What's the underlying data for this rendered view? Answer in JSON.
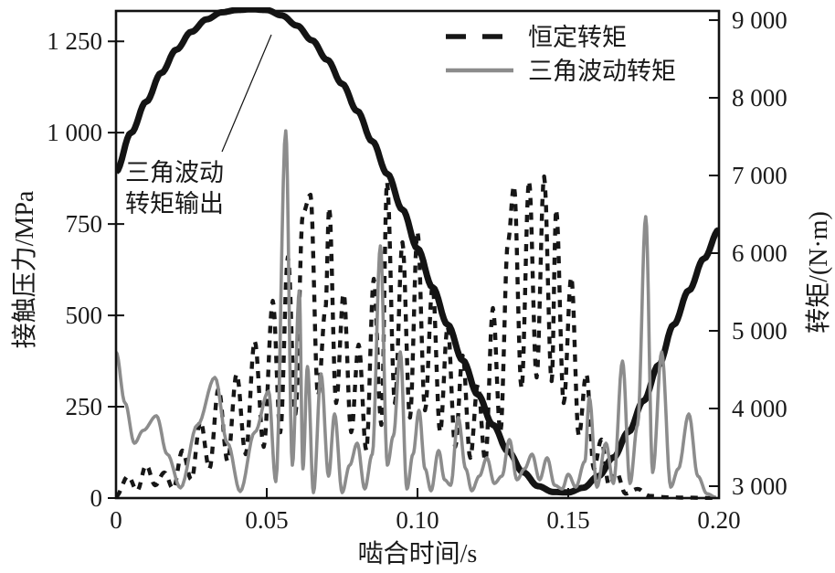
{
  "chart_data": {
    "type": "line",
    "title": "",
    "xlabel": "啮合时间/s",
    "ylabel_left": "接触压力/MPa",
    "ylabel_right": "转矩/(N·m)",
    "xlim": [
      0,
      0.2
    ],
    "ylim_left": [
      0,
      1333
    ],
    "ylim_right": [
      2847,
      9118
    ],
    "grid": false,
    "legend_position": "top-right-inside",
    "x_ticks": [
      {
        "value": 0,
        "label": "0"
      },
      {
        "value": 0.05,
        "label": "0.05"
      },
      {
        "value": 0.1,
        "label": "0.10"
      },
      {
        "value": 0.15,
        "label": "0.15"
      },
      {
        "value": 0.2,
        "label": "0.20"
      }
    ],
    "y_ticks_left": [
      {
        "value": 0,
        "label": "0"
      },
      {
        "value": 250,
        "label": "250"
      },
      {
        "value": 500,
        "label": "500"
      },
      {
        "value": 750,
        "label": "750"
      },
      {
        "value": 1000,
        "label": "1 000"
      },
      {
        "value": 1250,
        "label": "1 250"
      }
    ],
    "y_ticks_right": [
      {
        "value": 3000,
        "label": "3 000"
      },
      {
        "value": 4000,
        "label": "4 000"
      },
      {
        "value": 5000,
        "label": "5 000"
      },
      {
        "value": 6000,
        "label": "6 000"
      },
      {
        "value": 7000,
        "label": "7 000"
      },
      {
        "value": 8000,
        "label": "8 000"
      },
      {
        "value": 9000,
        "label": "9 000"
      }
    ],
    "annotation": {
      "lines": [
        "三角波动",
        "转矩输出"
      ],
      "points_to_series": "三角波动转矩输出"
    },
    "series": [
      {
        "name": "恒定转矩",
        "axis": "left",
        "unit": "MPa",
        "line": "dashed",
        "color": "#161616",
        "width": 4.4,
        "in_legend": true,
        "points": [
          [
            0,
            5
          ],
          [
            0.004,
            60
          ],
          [
            0.007,
            20
          ],
          [
            0.01,
            90
          ],
          [
            0.013,
            35
          ],
          [
            0.016,
            70
          ],
          [
            0.019,
            25
          ],
          [
            0.022,
            130
          ],
          [
            0.025,
            50
          ],
          [
            0.028,
            210
          ],
          [
            0.031,
            80
          ],
          [
            0.034,
            300
          ],
          [
            0.037,
            100
          ],
          [
            0.04,
            340
          ],
          [
            0.043,
            120
          ],
          [
            0.046,
            430
          ],
          [
            0.049,
            140
          ],
          [
            0.052,
            540
          ],
          [
            0.0545,
            180
          ],
          [
            0.057,
            660
          ],
          [
            0.0595,
            230
          ],
          [
            0.062,
            780
          ],
          [
            0.0645,
            830
          ],
          [
            0.067,
            280
          ],
          [
            0.0695,
            520
          ],
          [
            0.0707,
            795
          ],
          [
            0.073,
            260
          ],
          [
            0.0755,
            560
          ],
          [
            0.078,
            180
          ],
          [
            0.0805,
            420
          ],
          [
            0.083,
            130
          ],
          [
            0.0855,
            600
          ],
          [
            0.088,
            200
          ],
          [
            0.0899,
            865
          ],
          [
            0.0925,
            260
          ],
          [
            0.095,
            700
          ],
          [
            0.0975,
            220
          ],
          [
            0.1,
            730
          ],
          [
            0.1025,
            240
          ],
          [
            0.105,
            580
          ],
          [
            0.1075,
            180
          ],
          [
            0.11,
            470
          ],
          [
            0.1125,
            140
          ],
          [
            0.115,
            390
          ],
          [
            0.1175,
            110
          ],
          [
            0.12,
            310
          ],
          [
            0.1225,
            100
          ],
          [
            0.125,
            520
          ],
          [
            0.1275,
            180
          ],
          [
            0.13,
            700
          ],
          [
            0.132,
            855
          ],
          [
            0.1345,
            300
          ],
          [
            0.137,
            868
          ],
          [
            0.1395,
            330
          ],
          [
            0.142,
            880
          ],
          [
            0.1445,
            320
          ],
          [
            0.146,
            790
          ],
          [
            0.1485,
            260
          ],
          [
            0.151,
            605
          ],
          [
            0.1535,
            170
          ],
          [
            0.156,
            340
          ],
          [
            0.1585,
            80
          ],
          [
            0.161,
            160
          ],
          [
            0.1635,
            35
          ],
          [
            0.166,
            70
          ],
          [
            0.169,
            12
          ],
          [
            0.173,
            25
          ],
          [
            0.177,
            6
          ],
          [
            0.183,
            2
          ],
          [
            0.19,
            1
          ],
          [
            0.2,
            0
          ]
        ]
      },
      {
        "name": "三角波动转矩",
        "axis": "left",
        "unit": "MPa",
        "line": "solid",
        "color": "#8c8c8c",
        "width": 3.6,
        "in_legend": true,
        "points": [
          [
            0,
            400
          ],
          [
            0.003,
            260
          ],
          [
            0.0061,
            150
          ],
          [
            0.009,
            185
          ],
          [
            0.0134,
            225
          ],
          [
            0.017,
            120
          ],
          [
            0.0214,
            28
          ],
          [
            0.027,
            200
          ],
          [
            0.0328,
            330
          ],
          [
            0.037,
            150
          ],
          [
            0.0412,
            18
          ],
          [
            0.046,
            180
          ],
          [
            0.0506,
            292
          ],
          [
            0.053,
            45
          ],
          [
            0.0563,
            1005
          ],
          [
            0.0585,
            90
          ],
          [
            0.0608,
            567
          ],
          [
            0.062,
            80
          ],
          [
            0.0635,
            360
          ],
          [
            0.0655,
            15
          ],
          [
            0.068,
            340
          ],
          [
            0.0705,
            60
          ],
          [
            0.0725,
            230
          ],
          [
            0.075,
            15
          ],
          [
            0.0775,
            90
          ],
          [
            0.08,
            150
          ],
          [
            0.0825,
            25
          ],
          [
            0.085,
            120
          ],
          [
            0.0877,
            690
          ],
          [
            0.09,
            90
          ],
          [
            0.092,
            170
          ],
          [
            0.0943,
            400
          ],
          [
            0.0965,
            25
          ],
          [
            0.0985,
            120
          ],
          [
            0.1005,
            240
          ],
          [
            0.1025,
            80
          ],
          [
            0.1045,
            20
          ],
          [
            0.107,
            130
          ],
          [
            0.109,
            50
          ],
          [
            0.111,
            35
          ],
          [
            0.1135,
            220
          ],
          [
            0.116,
            80
          ],
          [
            0.118,
            20
          ],
          [
            0.1205,
            60
          ],
          [
            0.123,
            110
          ],
          [
            0.1255,
            40
          ],
          [
            0.128,
            60
          ],
          [
            0.1305,
            160
          ],
          [
            0.133,
            50
          ],
          [
            0.1355,
            80
          ],
          [
            0.138,
            120
          ],
          [
            0.1405,
            50
          ],
          [
            0.143,
            110
          ],
          [
            0.1455,
            35
          ],
          [
            0.148,
            25
          ],
          [
            0.15,
            65
          ],
          [
            0.1525,
            30
          ],
          [
            0.1555,
            100
          ],
          [
            0.157,
            275
          ],
          [
            0.1595,
            30
          ],
          [
            0.1625,
            150
          ],
          [
            0.165,
            40
          ],
          [
            0.168,
            375
          ],
          [
            0.1705,
            40
          ],
          [
            0.173,
            200
          ],
          [
            0.1757,
            770
          ],
          [
            0.178,
            70
          ],
          [
            0.181,
            400
          ],
          [
            0.184,
            30
          ],
          [
            0.1865,
            80
          ],
          [
            0.19,
            230
          ],
          [
            0.193,
            60
          ],
          [
            0.196,
            12
          ],
          [
            0.199,
            2
          ]
        ]
      },
      {
        "name": "三角波动转矩输出",
        "axis": "right",
        "unit": "N·m",
        "line": "solid",
        "color": "#141414",
        "width": 7,
        "in_legend": false,
        "points": [
          [
            0,
            7050
          ],
          [
            0.005,
            7550
          ],
          [
            0.01,
            7950
          ],
          [
            0.015,
            8320
          ],
          [
            0.02,
            8620
          ],
          [
            0.025,
            8850
          ],
          [
            0.03,
            9010
          ],
          [
            0.035,
            9100
          ],
          [
            0.04,
            9130
          ],
          [
            0.045,
            9140
          ],
          [
            0.05,
            9130
          ],
          [
            0.055,
            9060
          ],
          [
            0.06,
            8930
          ],
          [
            0.065,
            8740
          ],
          [
            0.07,
            8490
          ],
          [
            0.075,
            8180
          ],
          [
            0.08,
            7830
          ],
          [
            0.085,
            7440
          ],
          [
            0.09,
            7020
          ],
          [
            0.095,
            6560
          ],
          [
            0.1,
            6060
          ],
          [
            0.105,
            5560
          ],
          [
            0.11,
            5080
          ],
          [
            0.115,
            4620
          ],
          [
            0.12,
            4180
          ],
          [
            0.125,
            3790
          ],
          [
            0.13,
            3450
          ],
          [
            0.135,
            3180
          ],
          [
            0.14,
            3000
          ],
          [
            0.145,
            2925
          ],
          [
            0.15,
            2920
          ],
          [
            0.155,
            2980
          ],
          [
            0.16,
            3130
          ],
          [
            0.165,
            3370
          ],
          [
            0.17,
            3700
          ],
          [
            0.175,
            4100
          ],
          [
            0.18,
            4560
          ],
          [
            0.185,
            5080
          ],
          [
            0.19,
            5520
          ],
          [
            0.195,
            5930
          ],
          [
            0.2,
            6300
          ]
        ]
      }
    ],
    "colors": {
      "frame": "#111111",
      "text": "#1a1a1a",
      "background": "#ffffff"
    }
  }
}
